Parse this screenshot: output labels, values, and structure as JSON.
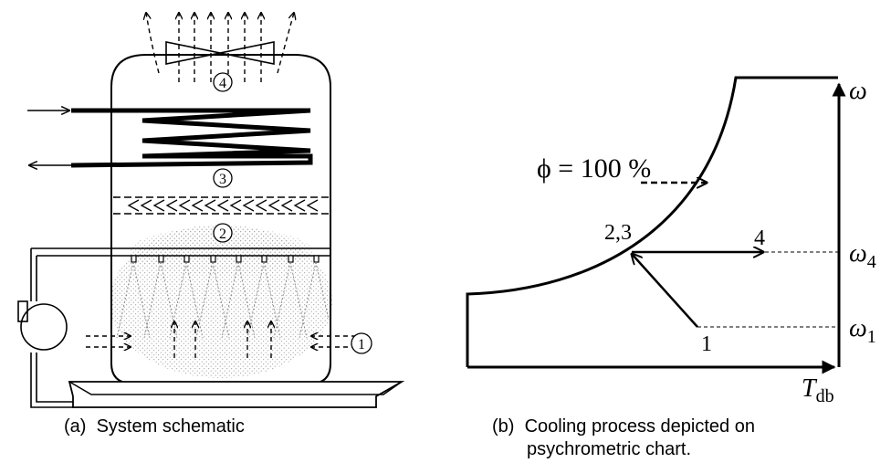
{
  "schematic": {
    "caption_tag": "(a)",
    "caption_text": "System schematic",
    "station_labels": [
      "①",
      "②",
      "③",
      "④"
    ]
  },
  "chart": {
    "caption_tag": "(b)",
    "caption_line1": "Cooling process depicted on",
    "caption_line2": "psychrometric chart.",
    "saturation_label": "ϕ = 100 %",
    "y_axis_label": "ω",
    "x_axis_label_main": "T",
    "x_axis_label_sub": "db",
    "omega4_main": "ω",
    "omega4_sub": "4",
    "omega1_main": "ω",
    "omega1_sub": "1",
    "point_1": "1",
    "point_23": "2,3",
    "point_4": "4"
  },
  "colors": {
    "line": "#000000",
    "spray_mist": "#9a9a9a"
  }
}
